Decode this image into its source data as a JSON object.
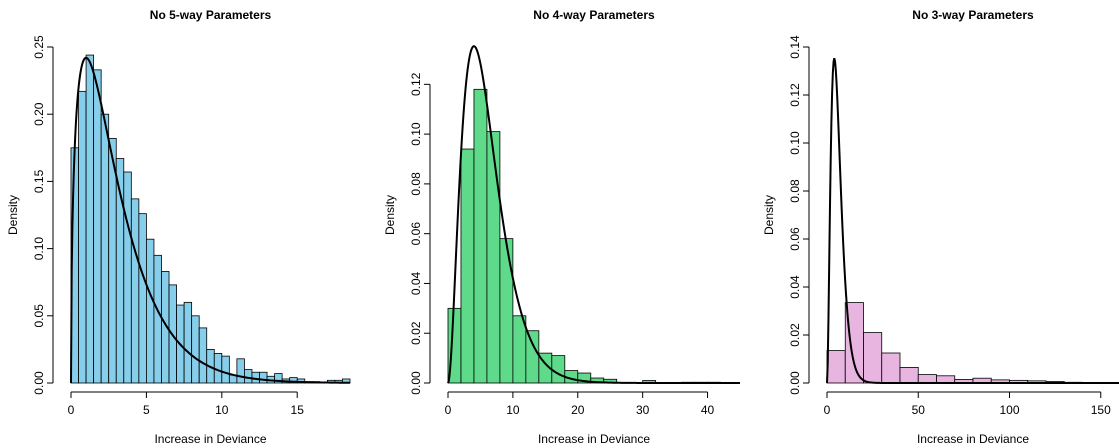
{
  "chart_data": [
    {
      "type": "histogram",
      "title": "No 5-way Parameters",
      "xlabel": "Increase in Deviance",
      "ylabel": "Density",
      "xlim": [
        0,
        18.5
      ],
      "ylim": [
        0,
        0.25
      ],
      "xticks": [
        0,
        5,
        10,
        15
      ],
      "yticks": [
        0.0,
        0.05,
        0.1,
        0.15,
        0.2,
        0.25
      ],
      "xtick_labels": [
        "0",
        "5",
        "10",
        "15"
      ],
      "ytick_labels": [
        "0.00",
        "0.05",
        "0.10",
        "0.15",
        "0.20",
        "0.25"
      ],
      "bar_color": "#87ceeb",
      "bin_edges": [
        0,
        0.5,
        1,
        1.5,
        2,
        2.5,
        3,
        3.5,
        4,
        4.5,
        5,
        5.5,
        6,
        6.5,
        7,
        7.5,
        8,
        8.5,
        9,
        9.5,
        10,
        10.5,
        11,
        11.5,
        12,
        12.5,
        13,
        13.5,
        14,
        14.5,
        15,
        15.5,
        16,
        16.5,
        17,
        17.5,
        18,
        18.5
      ],
      "densities": [
        0.175,
        0.217,
        0.244,
        0.233,
        0.2,
        0.182,
        0.167,
        0.157,
        0.137,
        0.126,
        0.107,
        0.095,
        0.083,
        0.073,
        0.058,
        0.06,
        0.05,
        0.041,
        0.025,
        0.022,
        0.02,
        0.006,
        0.018,
        0.01,
        0.008,
        0.008,
        0.005,
        0.007,
        0.003,
        0.004,
        0.003,
        0.001,
        0.001,
        0.0,
        0.002,
        0.002,
        0.003
      ],
      "curve": {
        "distribution": "chi-squared",
        "df": 3,
        "color": "#000000"
      }
    },
    {
      "type": "histogram",
      "title": "No 4-way Parameters",
      "xlabel": "Increase in Deviance",
      "ylabel": "Density",
      "xlim": [
        0,
        45
      ],
      "ylim": [
        0,
        0.135
      ],
      "xticks": [
        0,
        10,
        20,
        30,
        40
      ],
      "yticks": [
        0.0,
        0.02,
        0.04,
        0.06,
        0.08,
        0.1,
        0.12
      ],
      "xtick_labels": [
        "0",
        "10",
        "20",
        "30",
        "40"
      ],
      "ytick_labels": [
        "0.00",
        "0.02",
        "0.04",
        "0.06",
        "0.08",
        "0.10",
        "0.12"
      ],
      "bar_color": "#5fd98a",
      "bin_edges": [
        0,
        2,
        4,
        6,
        8,
        10,
        12,
        14,
        16,
        18,
        20,
        22,
        24,
        26,
        28,
        30,
        32,
        34,
        36,
        38,
        40,
        42
      ],
      "densities": [
        0.03,
        0.094,
        0.118,
        0.101,
        0.058,
        0.027,
        0.021,
        0.012,
        0.011,
        0.005,
        0.004,
        0.002,
        0.0015,
        0.0,
        0.0,
        0.001,
        0.0,
        0.0,
        0.0003,
        0.0003,
        0.0003
      ],
      "curve": {
        "distribution": "chi-squared",
        "df": 6,
        "color": "#000000"
      }
    },
    {
      "type": "histogram",
      "title": "No 3-way Parameters",
      "xlabel": "Increase in Deviance",
      "ylabel": "Density",
      "xlim": [
        0,
        160
      ],
      "ylim": [
        0,
        0.14
      ],
      "xticks": [
        0,
        50,
        100,
        150
      ],
      "yticks": [
        0.0,
        0.02,
        0.04,
        0.06,
        0.08,
        0.1,
        0.12,
        0.14
      ],
      "xtick_labels": [
        "0",
        "50",
        "100",
        "150"
      ],
      "ytick_labels": [
        "0.00",
        "0.02",
        "0.04",
        "0.06",
        "0.08",
        "0.10",
        "0.12",
        "0.14"
      ],
      "bar_color": "#e8b4e0",
      "bin_edges": [
        0,
        10,
        20,
        30,
        40,
        50,
        60,
        70,
        80,
        90,
        100,
        110,
        120,
        130,
        140
      ],
      "densities": [
        0.0135,
        0.0335,
        0.021,
        0.0125,
        0.0065,
        0.0035,
        0.003,
        0.0015,
        0.002,
        0.0013,
        0.0011,
        0.0009,
        0.0006,
        0.0003
      ],
      "curve": {
        "distribution": "chi-squared",
        "df": 6,
        "color": "#000000"
      }
    }
  ]
}
